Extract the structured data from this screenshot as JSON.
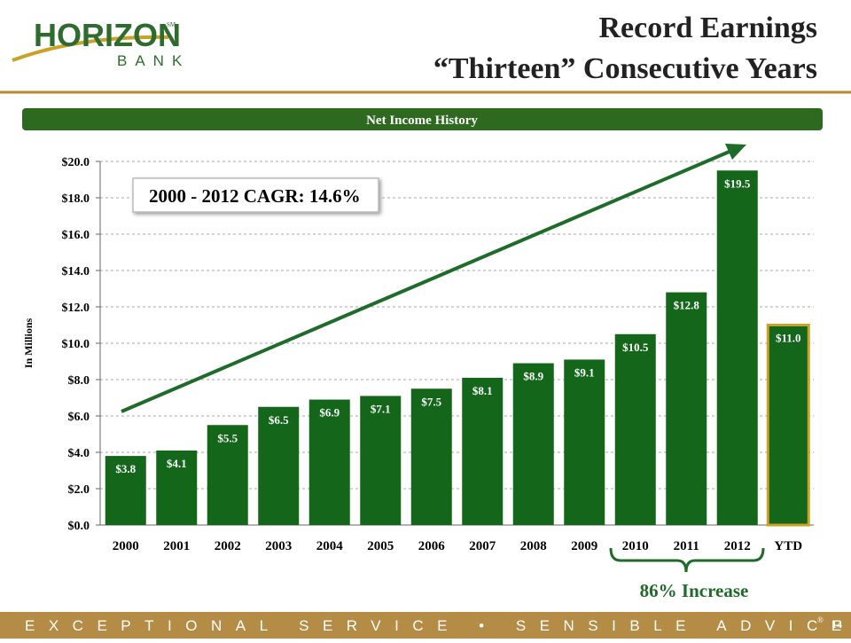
{
  "logo": {
    "name": "HORIZON",
    "mark": "SM",
    "sub": "BANK"
  },
  "title": [
    "Record Earnings",
    "“Thirteen” Consecutive Years"
  ],
  "footer": {
    "tagline": "EXCEPTIONAL SERVICE • SENSIBLE ADVICE",
    "registered": "®",
    "page": "14"
  },
  "chart_data": {
    "type": "bar",
    "title": "Net Income History",
    "y_label": "In Millions",
    "annotations": [
      "2000 - 2012 CAGR: 14.6%",
      "86% Increase"
    ],
    "categories": [
      "2000",
      "2001",
      "2002",
      "2003",
      "2004",
      "2005",
      "2006",
      "2007",
      "2008",
      "2009",
      "2010",
      "2011",
      "2012",
      "YTD"
    ],
    "values": [
      3.8,
      4.1,
      5.5,
      6.5,
      6.9,
      7.1,
      7.5,
      8.1,
      8.9,
      9.1,
      10.5,
      12.8,
      19.5,
      11.0
    ],
    "value_labels": [
      "$3.8",
      "$4.1",
      "$5.5",
      "$6.5",
      "$6.9",
      "$7.1",
      "$7.5",
      "$8.1",
      "$8.9",
      "$9.1",
      "$10.5",
      "$12.8",
      "$19.5",
      "$11.0"
    ],
    "color": "#13661a",
    "highlight": {
      "index": 13,
      "color": "#c9a227"
    },
    "ylim": [
      0,
      20
    ],
    "yticks": [
      {
        "value": 0,
        "label": "$0.0"
      },
      {
        "value": 2,
        "label": "$2.0"
      },
      {
        "value": 4,
        "label": "$4.0"
      },
      {
        "value": 6,
        "label": "$6.0"
      },
      {
        "value": 8,
        "label": "$8.0"
      },
      {
        "value": 10,
        "label": "$10.0"
      },
      {
        "value": 12,
        "label": "$12.0"
      },
      {
        "value": 14,
        "label": "$14.0"
      },
      {
        "value": 16,
        "label": "$16.0"
      },
      {
        "value": 18,
        "label": "$18.0"
      },
      {
        "value": 20,
        "label": "$20.0"
      }
    ],
    "grid": true
  }
}
